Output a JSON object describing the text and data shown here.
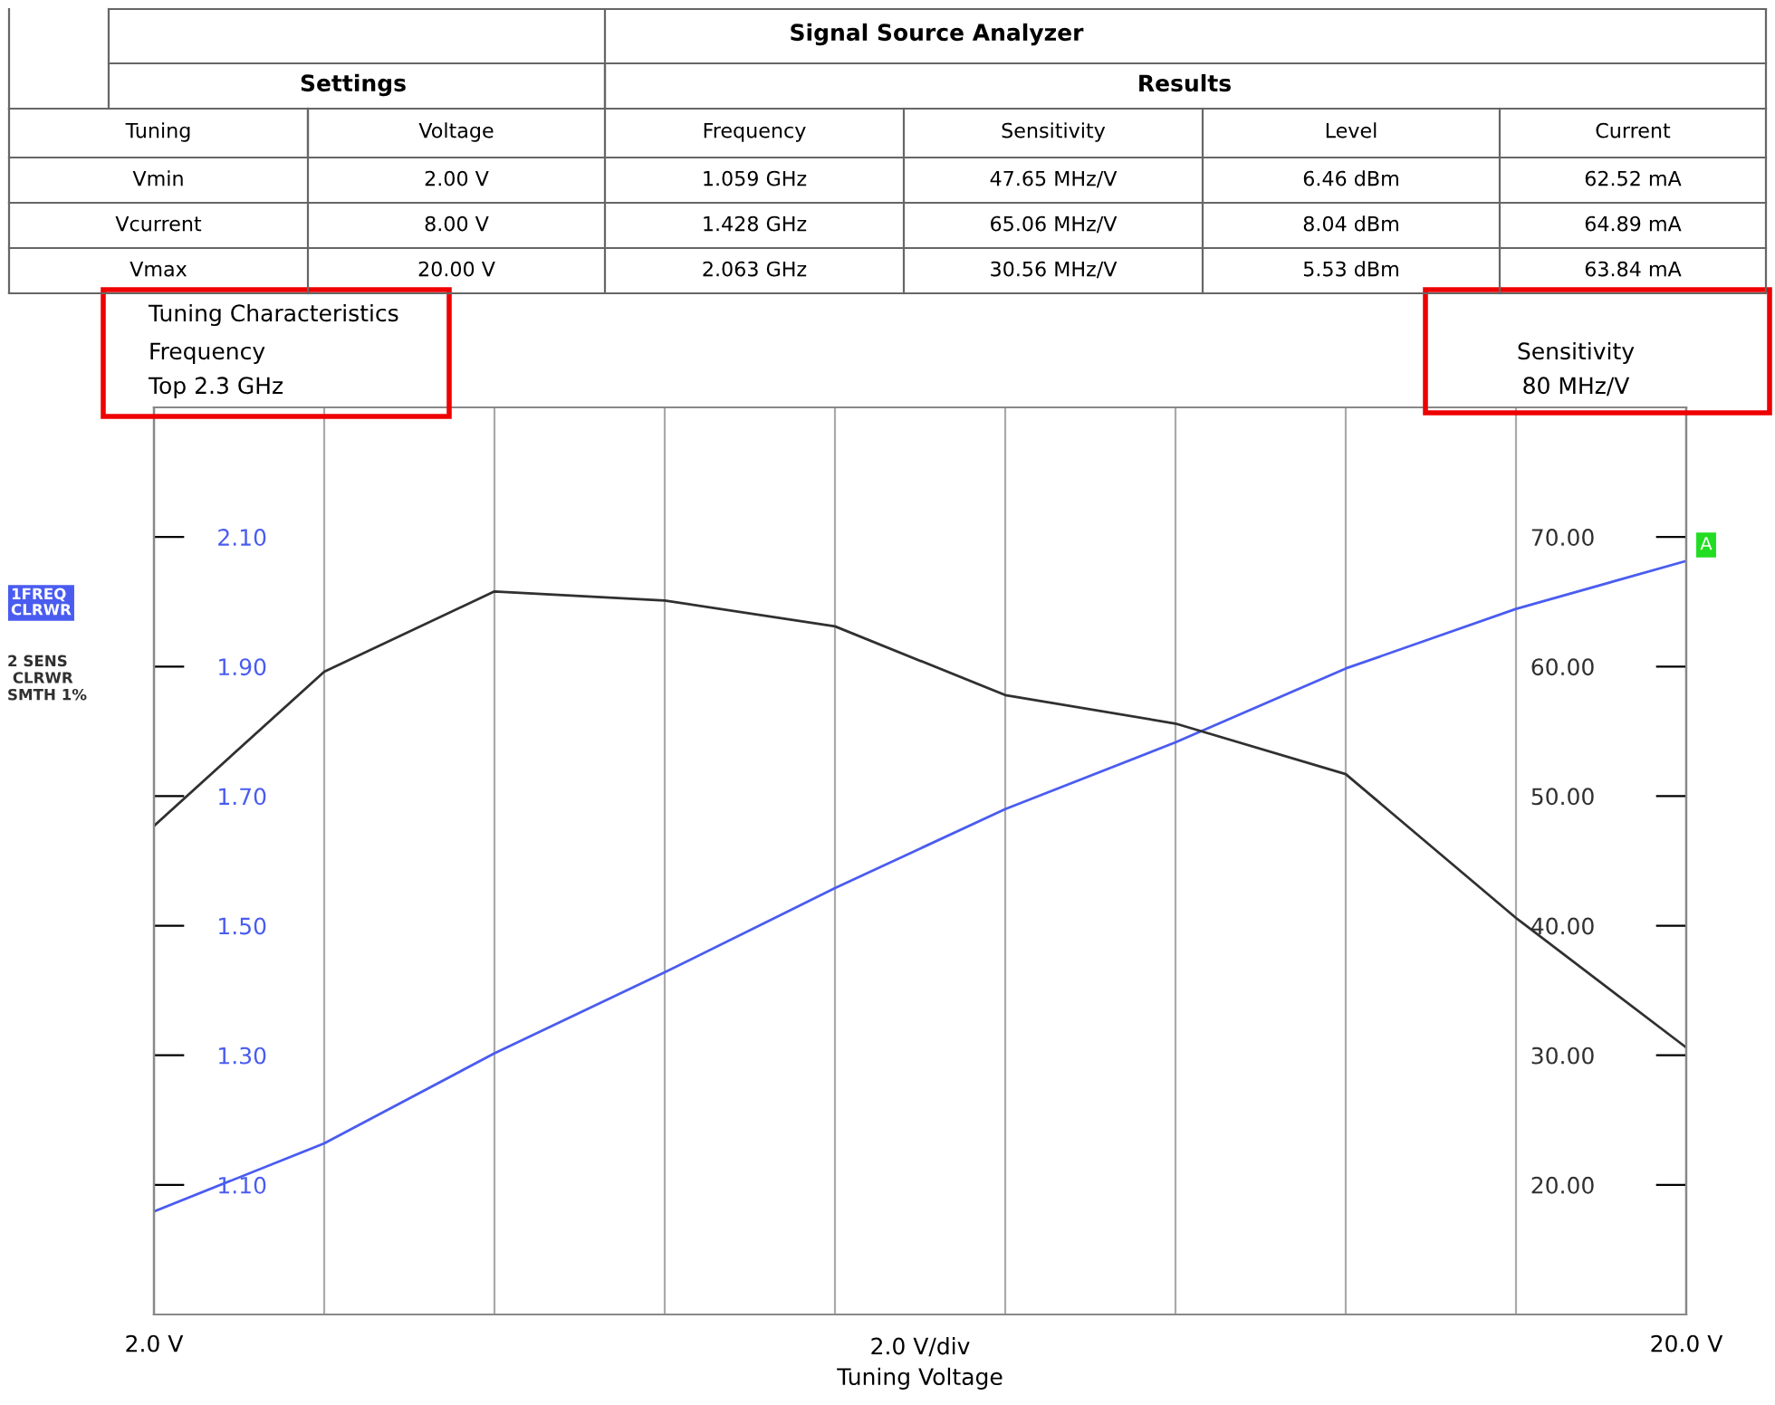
{
  "chart_data": {
    "type": "line",
    "title": "Signal Source Analyzer",
    "xlabel": "2.0 V/div\nTuning Voltage",
    "ylabel": "Frequency",
    "y2label": "Sensitivity",
    "x": [
      2,
      4,
      6,
      8,
      10,
      12,
      14,
      16,
      18,
      20
    ],
    "series": [
      {
        "name": "1FREQ CLRWR",
        "color": "#4a5cf0",
        "values": [
          1.059,
          1.164,
          1.303,
          1.428,
          1.558,
          1.68,
          1.783,
          1.897,
          1.989,
          2.063
        ]
      },
      {
        "name": "2 SENS CLRWR SMTH 1%",
        "color": "#303030",
        "axis": "y2",
        "values": [
          47.7,
          59.6,
          65.8,
          65.1,
          63.1,
          57.8,
          55.6,
          51.7,
          40.6,
          30.6
        ]
      }
    ],
    "xlim": [
      2,
      20
    ],
    "xticks": [
      {
        "value": 2,
        "label": "2.0 V"
      },
      {
        "value": 4,
        "label": null
      },
      {
        "value": 6,
        "label": null
      },
      {
        "value": 8,
        "label": null
      },
      {
        "value": 10,
        "label": null
      },
      {
        "value": 12,
        "label": null
      },
      {
        "value": 14,
        "label": null
      },
      {
        "value": 16,
        "label": null
      },
      {
        "value": 18,
        "label": null
      },
      {
        "value": 20,
        "label": "20.0 V"
      }
    ],
    "ylim": [
      0.9,
      2.3
    ],
    "yticks": [
      {
        "value": 1.1,
        "label": "1.10"
      },
      {
        "value": 1.3,
        "label": "1.30"
      },
      {
        "value": 1.5,
        "label": "1.50"
      },
      {
        "value": 1.7,
        "label": "1.70"
      },
      {
        "value": 1.9,
        "label": "1.90"
      },
      {
        "value": 2.1,
        "label": "2.10"
      }
    ],
    "y2lim": [
      10,
      80
    ],
    "y2ticks": [
      {
        "value": 20,
        "label": "20.00"
      },
      {
        "value": 30,
        "label": "30.00"
      },
      {
        "value": 40,
        "label": "40.00"
      },
      {
        "value": 50,
        "label": "50.00"
      },
      {
        "value": 60,
        "label": "60.00"
      },
      {
        "value": 70,
        "label": "70.00"
      }
    ],
    "grid": "x",
    "legend": false,
    "marker": "none",
    "line_style": "solid",
    "annotations": [
      "Settings",
      "Results",
      "Tuning",
      "Voltage",
      "Frequency",
      "Sensitivity",
      "Level",
      "Current",
      "Vmin",
      "2.00 V",
      "1.059 GHz",
      "47.65 MHz/V",
      "6.46 dBm",
      "62.52 mA",
      "Vcurrent",
      "8.00 V",
      "1.428 GHz",
      "65.06 MHz/V",
      "8.04 dBm",
      "64.89 mA",
      "Vmax",
      "20.00 V",
      "2.063 GHz",
      "30.56 MHz/V",
      "5.53 dBm",
      "63.84 mA",
      "Tuning Characteristics",
      "Top 2.3 GHz",
      "80 MHz/V",
      "A"
    ]
  }
}
